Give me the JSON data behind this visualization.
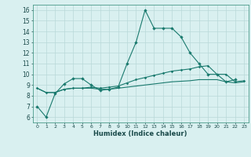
{
  "x": [
    0,
    1,
    2,
    3,
    4,
    5,
    6,
    7,
    8,
    9,
    10,
    11,
    12,
    13,
    14,
    15,
    16,
    17,
    18,
    19,
    20,
    21,
    22,
    23
  ],
  "line1": [
    7.0,
    6.0,
    8.2,
    9.1,
    9.6,
    9.6,
    9.0,
    8.5,
    8.6,
    8.8,
    11.0,
    13.0,
    16.0,
    14.3,
    14.3,
    14.3,
    13.5,
    12.0,
    11.0,
    10.0,
    10.0,
    9.3,
    9.5,
    null
  ],
  "line2": [
    8.7,
    8.3,
    8.3,
    8.6,
    8.7,
    8.7,
    8.8,
    8.7,
    8.8,
    8.9,
    9.2,
    9.5,
    9.7,
    9.9,
    10.1,
    10.3,
    10.4,
    10.5,
    10.7,
    10.8,
    10.0,
    10.0,
    9.3,
    9.4
  ],
  "line3": [
    8.7,
    8.3,
    8.3,
    8.6,
    8.7,
    8.7,
    8.7,
    8.6,
    8.6,
    8.7,
    8.8,
    8.9,
    9.0,
    9.1,
    9.2,
    9.3,
    9.35,
    9.4,
    9.5,
    9.5,
    9.5,
    9.3,
    9.2,
    9.3
  ],
  "line_color": "#1a7a6e",
  "bg_color": "#d9f0f0",
  "grid_color": "#b8d8d8",
  "xlabel": "Humidex (Indice chaleur)",
  "xlim": [
    -0.5,
    23.5
  ],
  "ylim": [
    5.5,
    16.5
  ],
  "yticks": [
    6,
    7,
    8,
    9,
    10,
    11,
    12,
    13,
    14,
    15,
    16
  ],
  "xticks": [
    0,
    1,
    2,
    3,
    4,
    5,
    6,
    7,
    8,
    9,
    10,
    11,
    12,
    13,
    14,
    15,
    16,
    17,
    18,
    19,
    20,
    21,
    22,
    23
  ]
}
